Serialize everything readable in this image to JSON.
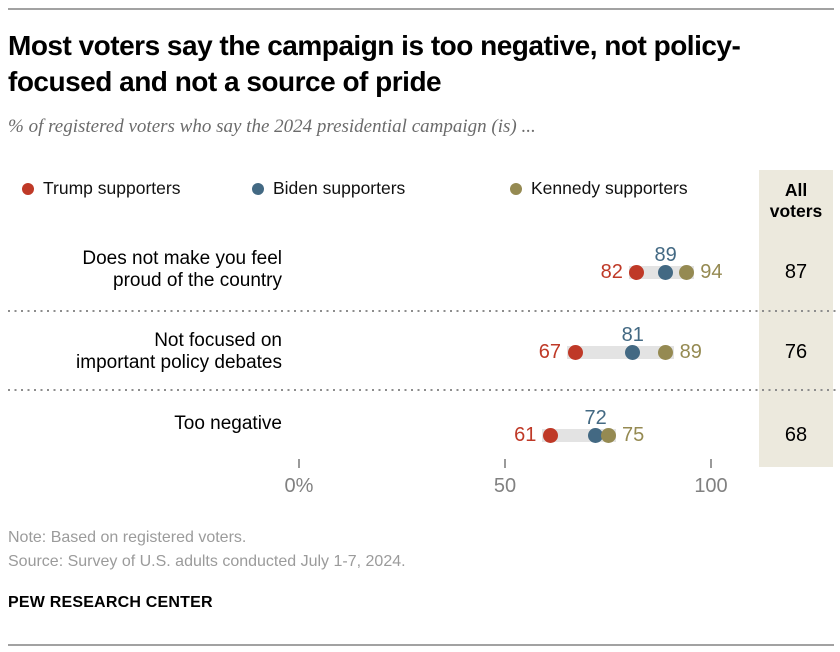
{
  "header": {
    "title": "Most voters say the campaign is too negative, not policy-focused and not a source of pride",
    "subtitle": "% of registered voters who say the 2024 presidential campaign (is) ..."
  },
  "chart_data": {
    "type": "scatter",
    "chart_style": "dot-plot",
    "categories": [
      "Does not make you feel proud of the country",
      "Not focused on important policy debates",
      "Too negative"
    ],
    "category_label_lines": [
      [
        "Does not make you feel",
        "proud of the country"
      ],
      [
        "Not focused on",
        "important policy debates"
      ],
      [
        "Too negative"
      ]
    ],
    "series": [
      {
        "name": "Trump supporters",
        "color": "#bf3927",
        "values": [
          82,
          67,
          61
        ]
      },
      {
        "name": "Biden supporters",
        "color": "#436983",
        "values": [
          89,
          81,
          72
        ]
      },
      {
        "name": "Kennedy supporters",
        "color": "#958a52",
        "values": [
          94,
          89,
          75
        ]
      }
    ],
    "all_voters": {
      "label": "All voters",
      "values": [
        87,
        76,
        68
      ]
    },
    "axis": {
      "range": [
        0,
        100
      ],
      "ticks": [
        {
          "label": "0%",
          "value": 0
        },
        {
          "label": "50",
          "value": 50
        },
        {
          "label": "100",
          "value": 100
        }
      ]
    },
    "connector_color": "#e3e3e3",
    "all_voters_bg": "#ece9dd",
    "legend_position": "top"
  },
  "footer": {
    "note": "Note: Based on registered voters.",
    "source": "Source: Survey of U.S. adults conducted July 1-7, 2024.",
    "brand": "PEW RESEARCH CENTER"
  }
}
